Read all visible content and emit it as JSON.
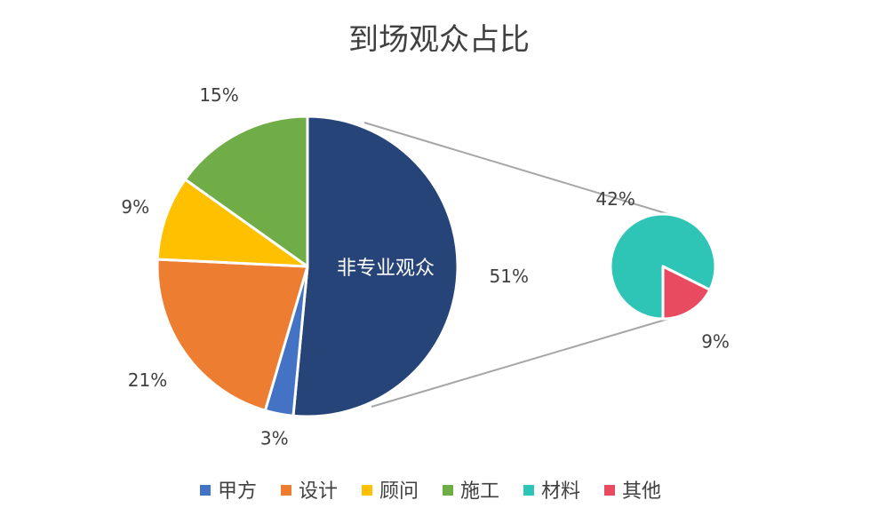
{
  "chart_data": {
    "type": "pie",
    "subtype": "pie-of-pie",
    "title": "到场观众占比",
    "main_pie": {
      "combined_slice_label": "非专业观众",
      "slices": [
        {
          "name": "非专业观众",
          "value": 51,
          "label": "51%",
          "color": "#264478",
          "combined": true
        },
        {
          "name": "甲方",
          "value": 3,
          "label": "3%",
          "color": "#4472C4"
        },
        {
          "name": "设计",
          "value": 21,
          "label": "21%",
          "color": "#ED7D31"
        },
        {
          "name": "顾问",
          "value": 9,
          "label": "9%",
          "color": "#FFC000"
        },
        {
          "name": "施工",
          "value": 15,
          "label": "15%",
          "color": "#70AD47"
        }
      ]
    },
    "secondary_pie": {
      "slices": [
        {
          "name": "材料",
          "value": 42,
          "label": "42%",
          "color": "#2EC4B6"
        },
        {
          "name": "其他",
          "value": 9,
          "label": "9%",
          "color": "#E84A5F"
        }
      ]
    },
    "legend": {
      "position": "bottom",
      "items": [
        {
          "name": "甲方",
          "color": "#4472C4"
        },
        {
          "name": "设计",
          "color": "#ED7D31"
        },
        {
          "name": "顾问",
          "color": "#FFC000"
        },
        {
          "name": "施工",
          "color": "#70AD47"
        },
        {
          "name": "材料",
          "color": "#2EC4B6"
        },
        {
          "name": "其他",
          "color": "#E84A5F"
        }
      ]
    }
  }
}
